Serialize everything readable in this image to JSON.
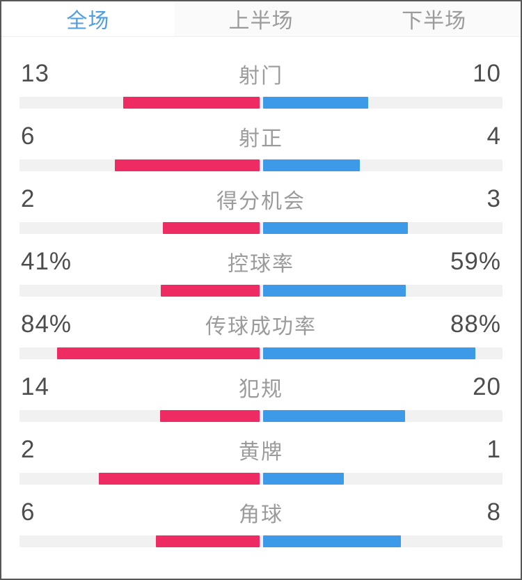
{
  "tabs": {
    "items": [
      {
        "label": "全场",
        "active": true
      },
      {
        "label": "上半场",
        "active": false
      },
      {
        "label": "下半场",
        "active": false
      }
    ]
  },
  "colors": {
    "home_bar": "#ee2c63",
    "away_bar": "#3d9ae8",
    "bar_track": "#f1f1f1",
    "active_tab_text": "#4f9ee0",
    "inactive_tab_text": "#9b9b9b",
    "value_text": "#4d4d4d",
    "label_text": "#9b9b9b"
  },
  "chart_data": {
    "type": "bar",
    "orientation": "horizontal-diverging-from-center",
    "home_color": "#ee2c63",
    "away_color": "#3d9ae8",
    "grid": false,
    "legend_position": "none",
    "bar_rule": "percent rows: width = value% of half-track; count rows: width = value/(home+away) of half-track",
    "rows": [
      {
        "label": "射门",
        "home": "13",
        "away": "10"
      },
      {
        "label": "射正",
        "home": "6",
        "away": "4"
      },
      {
        "label": "得分机会",
        "home": "2",
        "away": "3"
      },
      {
        "label": "控球率",
        "home": "41%",
        "away": "59%"
      },
      {
        "label": "传球成功率",
        "home": "84%",
        "away": "88%"
      },
      {
        "label": "犯规",
        "home": "14",
        "away": "20"
      },
      {
        "label": "黄牌",
        "home": "2",
        "away": "1"
      },
      {
        "label": "角球",
        "home": "6",
        "away": "8"
      }
    ]
  }
}
